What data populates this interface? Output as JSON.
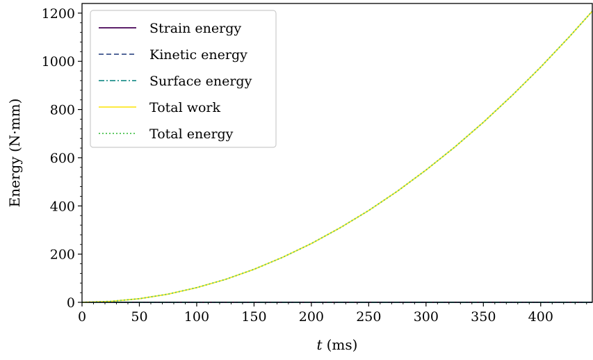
{
  "chart_data": {
    "type": "line",
    "xlabel_var": "t",
    "xlabel_unit": "(ms)",
    "ylabel": "Energy (N·mm)",
    "xlim": [
      0,
      445
    ],
    "ylim": [
      0,
      1240
    ],
    "xticks": [
      0,
      50,
      100,
      150,
      200,
      250,
      300,
      350,
      400
    ],
    "yticks": [
      0,
      200,
      400,
      600,
      800,
      1000,
      1200
    ],
    "grid": false,
    "legend_position": "top-left",
    "x": [
      0,
      25,
      50,
      75,
      100,
      125,
      150,
      175,
      200,
      225,
      250,
      275,
      300,
      325,
      350,
      375,
      400,
      425,
      445
    ],
    "series": [
      {
        "name": "Strain energy",
        "color": "#440154",
        "dash": "solid",
        "values": [
          0,
          0,
          0,
          0,
          0,
          0,
          0,
          0,
          0,
          0,
          0,
          0,
          0,
          0,
          0,
          0,
          0,
          0,
          0
        ]
      },
      {
        "name": "Kinetic energy",
        "color": "#3b528b",
        "dash": "dashed",
        "values": [
          0,
          0,
          0,
          0,
          0,
          0,
          0,
          0,
          0,
          0,
          0,
          0,
          0,
          0,
          0,
          0,
          0,
          0,
          0
        ]
      },
      {
        "name": "Surface energy",
        "color": "#21918c",
        "dash": "dashdot",
        "values": [
          0,
          0,
          0,
          0,
          0,
          0,
          0,
          0,
          0,
          0,
          0,
          0,
          0,
          0,
          0,
          0,
          0,
          0,
          0
        ]
      },
      {
        "name": "Total work",
        "color": "#fde725",
        "dash": "solid",
        "values": [
          0,
          4,
          15,
          34,
          61,
          95,
          137,
          187,
          244,
          309,
          381,
          461,
          549,
          644,
          747,
          858,
          976,
          1102,
          1208
        ]
      },
      {
        "name": "Total energy",
        "color": "#5ec962",
        "dash": "dotted",
        "values": [
          0,
          4,
          15,
          34,
          61,
          95,
          137,
          187,
          244,
          309,
          381,
          461,
          549,
          644,
          747,
          858,
          976,
          1102,
          1208
        ]
      }
    ]
  }
}
